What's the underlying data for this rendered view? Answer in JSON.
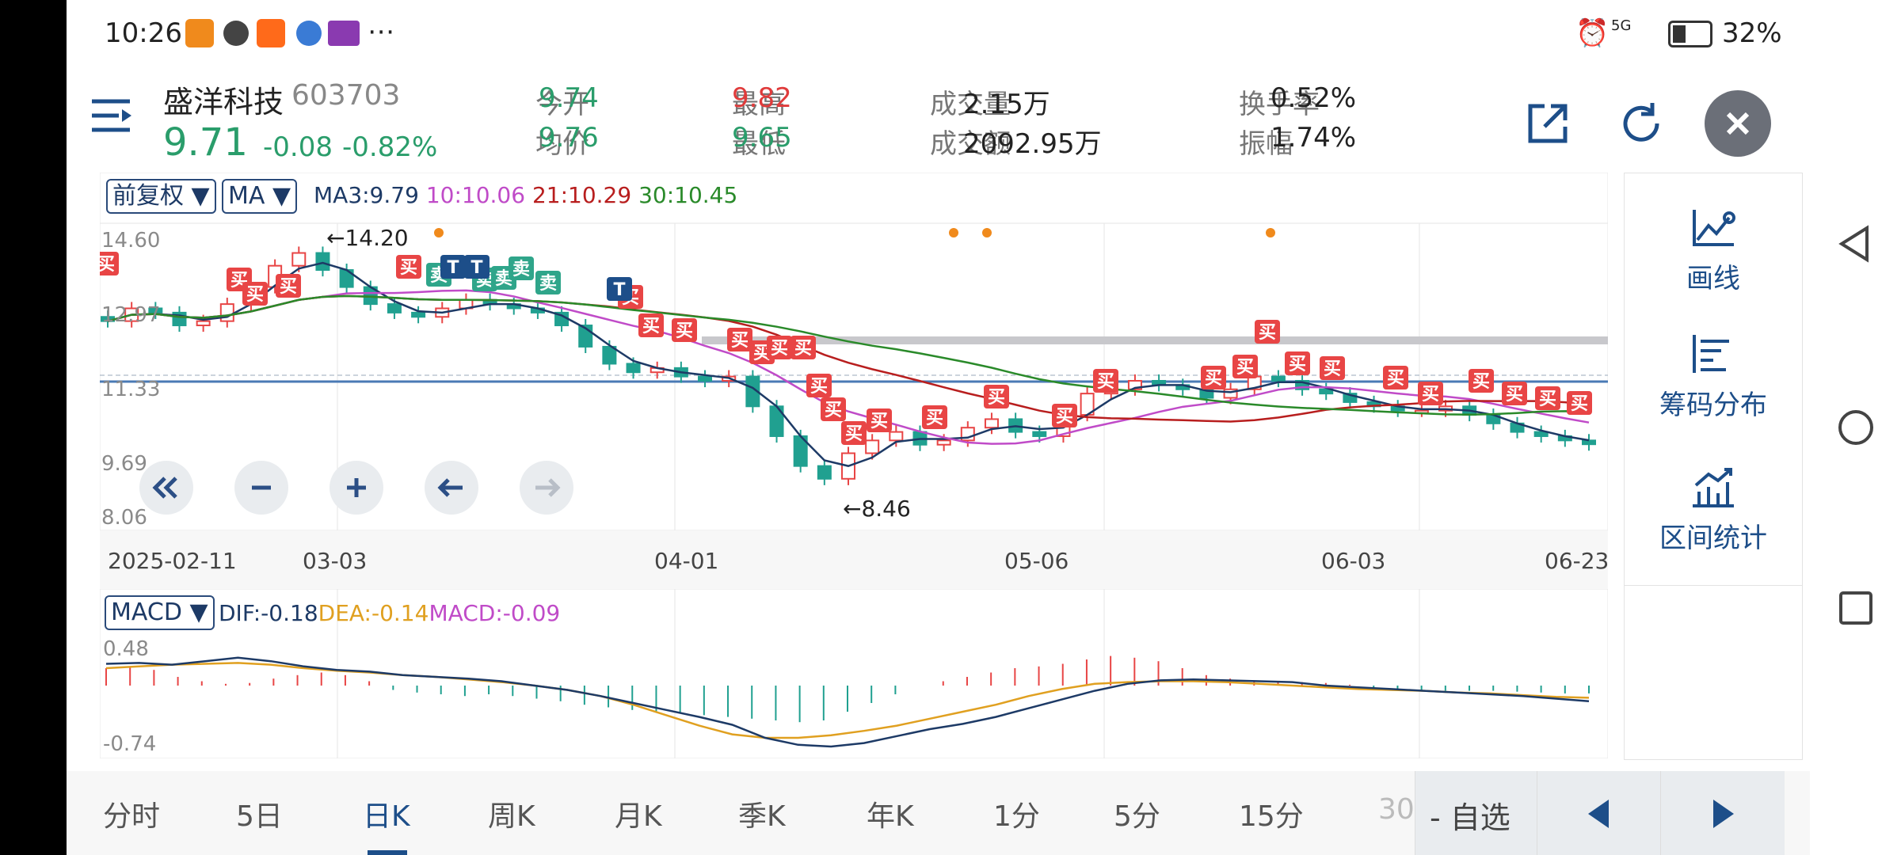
{
  "status": {
    "time": "10:26",
    "network": "5G",
    "battery": "32%"
  },
  "stock": {
    "name": "盛洋科技",
    "code": "603703",
    "price": "9.71",
    "change": "-0.08",
    "change_pct": "-0.82%"
  },
  "quote": [
    {
      "label": "今开",
      "value": "9.74",
      "color": "#2a9d6b"
    },
    {
      "label": "最高",
      "value": "9.82",
      "color": "#e03b3b"
    },
    {
      "label": "成交量",
      "value": "2.15万",
      "color": "#222222"
    },
    {
      "label": "换手率",
      "value": "0.52%",
      "color": "#222222"
    },
    {
      "label": "均价",
      "value": "9.76",
      "color": "#2a9d6b"
    },
    {
      "label": "最低",
      "value": "9.65",
      "color": "#2a9d6b"
    },
    {
      "label": "成交额",
      "value": "2092.95万",
      "color": "#222222"
    },
    {
      "label": "振幅",
      "value": "1.74%",
      "color": "#222222"
    }
  ],
  "chart": {
    "adjust_dropdown": "前复权 ▼",
    "ma_dropdown": "MA ▼",
    "ma_legend": [
      {
        "text": "MA3:9.79",
        "color": "#1d3a66"
      },
      {
        "text": "10:10.06",
        "color": "#c04bc8"
      },
      {
        "text": "21:10.29",
        "color": "#b81e1e"
      },
      {
        "text": "30:10.45",
        "color": "#2a8a2a"
      }
    ],
    "price_ticks": [
      "14.60",
      "12.97",
      "11.33",
      "9.69",
      "8.06"
    ],
    "high_marker": "←14.20",
    "low_marker": "←8.46",
    "dates": [
      "2025-02-11",
      "03-03",
      "04-01",
      "05-06",
      "06-03",
      "06-23"
    ],
    "macd_dropdown": "MACD ▼",
    "macd_legend": [
      {
        "text": "DIF:-0.18",
        "color": "#1d3a66"
      },
      {
        "text": "DEA:-0.14",
        "color": "#e0a020"
      },
      {
        "text": "MACD:-0.09",
        "color": "#c04bc8"
      }
    ],
    "macd_ticks": [
      "0.48",
      "-0.74"
    ],
    "buy_label": "买",
    "sell_label": "卖",
    "t_label": "T",
    "colors": {
      "up": "#e84545",
      "down": "#20a090",
      "ma3": "#1d3a66",
      "ma10": "#c04bc8",
      "ma21": "#b81e1e",
      "ma30": "#2a8a2a",
      "dea": "#e0a020"
    }
  },
  "chart_data": {
    "type": "candlestick",
    "title": "",
    "ylim": [
      8.06,
      14.6
    ],
    "x_ticks": [
      "2025-02-11",
      "03-03",
      "04-01",
      "05-06",
      "06-03",
      "06-23"
    ],
    "annotations": [
      "←14.20",
      "←8.46"
    ],
    "series": [
      {
        "name": "MA3",
        "value": 9.79
      },
      {
        "name": "10",
        "value": 10.06
      },
      {
        "name": "21",
        "value": 10.29
      },
      {
        "name": "30",
        "value": 10.45
      }
    ],
    "close_approx": [
      12.6,
      12.9,
      12.8,
      12.5,
      12.6,
      13.0,
      13.4,
      13.9,
      14.2,
      13.8,
      13.4,
      13.0,
      12.8,
      12.7,
      12.9,
      13.1,
      13.0,
      12.9,
      12.8,
      12.5,
      12.0,
      11.6,
      11.4,
      11.5,
      11.3,
      11.2,
      11.3,
      10.6,
      9.9,
      9.2,
      8.9,
      9.5,
      9.8,
      10.0,
      9.7,
      9.8,
      10.1,
      10.3,
      10.0,
      9.9,
      10.4,
      10.9,
      11.0,
      11.2,
      11.1,
      11.0,
      10.8,
      11.0,
      11.3,
      11.2,
      11.0,
      10.9,
      10.7,
      10.6,
      10.5,
      10.5,
      10.6,
      10.4,
      10.2,
      10.0,
      9.9,
      9.8,
      9.71
    ],
    "macd": {
      "DIF": -0.18,
      "DEA": -0.14,
      "MACD": -0.09,
      "ylim": [
        -0.74,
        0.48
      ]
    }
  },
  "controls": [
    "«",
    "−",
    "+",
    "←",
    "→"
  ],
  "sidebar": [
    {
      "label": "画线",
      "icon": "draw-line-icon"
    },
    {
      "label": "筹码分布",
      "icon": "chip-distribution-icon"
    },
    {
      "label": "区间统计",
      "icon": "interval-stats-icon"
    }
  ],
  "tabs": [
    "分时",
    "5日",
    "日K",
    "周K",
    "月K",
    "季K",
    "年K",
    "1分",
    "5分",
    "15分",
    "30"
  ],
  "active_tab": "日K",
  "watchlist": "- 自选"
}
